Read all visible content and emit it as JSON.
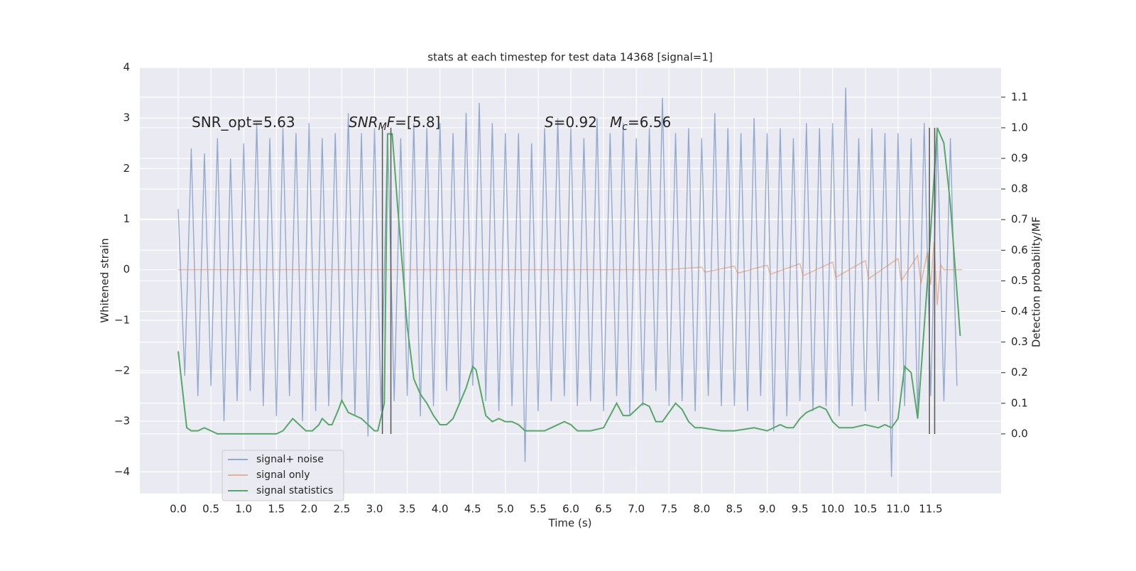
{
  "chart_data": {
    "type": "line",
    "title": "stats at each timestep for test data 14368 [signal=1]",
    "xlabel": "Time (s)",
    "ylabel": "Whitened strain",
    "y2label": "Detection probability/MF",
    "annotations": [
      [
        {
          "text": "SNR_opt=5.63"
        }
      ],
      [
        {
          "text": "SNR",
          "italic": true
        },
        {
          "text": "M",
          "italic": true,
          "sub": true
        },
        {
          "text": "F",
          "italic": true
        },
        {
          "text": "=[5.8]"
        }
      ],
      [
        {
          "text": "S",
          "italic": true
        },
        {
          "text": "=0.92"
        }
      ],
      [
        {
          "text": "M",
          "italic": true
        },
        {
          "text": "c",
          "italic": true,
          "sub": true
        },
        {
          "text": "=6.56"
        }
      ]
    ],
    "xlim": [
      -0.586,
      12.575
    ],
    "ylim": [
      -4.43,
      4.0
    ],
    "y2lim": [
      -0.195,
      1.197
    ],
    "xticks": [
      {
        "value": 0,
        "label": "0.0"
      },
      {
        "value": 0.5,
        "label": "0.5"
      },
      {
        "value": 1,
        "label": "1.0"
      },
      {
        "value": 1.5,
        "label": "1.5"
      },
      {
        "value": 2,
        "label": "2.0"
      },
      {
        "value": 2.5,
        "label": "2.5"
      },
      {
        "value": 3,
        "label": "3.0"
      },
      {
        "value": 3.5,
        "label": "3.5"
      },
      {
        "value": 4,
        "label": "4.0"
      },
      {
        "value": 4.5,
        "label": "4.5"
      },
      {
        "value": 5,
        "label": "5.0"
      },
      {
        "value": 5.5,
        "label": "5.5"
      },
      {
        "value": 6,
        "label": "6.0"
      },
      {
        "value": 6.5,
        "label": "6.5"
      },
      {
        "value": 7,
        "label": "7.0"
      },
      {
        "value": 7.5,
        "label": "7.5"
      },
      {
        "value": 8,
        "label": "8.0"
      },
      {
        "value": 8.5,
        "label": "8.5"
      },
      {
        "value": 9,
        "label": "9.0"
      },
      {
        "value": 9.5,
        "label": "9.5"
      },
      {
        "value": 10,
        "label": "10.0"
      },
      {
        "value": 10.5,
        "label": "10.5"
      },
      {
        "value": 11,
        "label": "11.0"
      },
      {
        "value": 11.5,
        "label": "11.5"
      }
    ],
    "yticks": [
      {
        "value": -4,
        "label": "−4"
      },
      {
        "value": -3,
        "label": "−3"
      },
      {
        "value": -2,
        "label": "−2"
      },
      {
        "value": -1,
        "label": "−1"
      },
      0,
      1,
      2,
      3,
      4
    ],
    "y2ticks": [
      {
        "value": 0,
        "label": "0.0"
      },
      {
        "value": 0.1,
        "label": "0.1"
      },
      {
        "value": 0.2,
        "label": "0.2"
      },
      {
        "value": 0.3,
        "label": "0.3"
      },
      {
        "value": 0.4,
        "label": "0.4"
      },
      {
        "value": 0.5,
        "label": "0.5"
      },
      {
        "value": 0.6,
        "label": "0.6"
      },
      {
        "value": 0.7,
        "label": "0.7"
      },
      {
        "value": 0.8,
        "label": "0.8"
      },
      {
        "value": 0.9,
        "label": "0.9"
      },
      {
        "value": 1,
        "label": "1.0"
      },
      {
        "value": 1.1,
        "label": "1.1"
      }
    ],
    "grid": true,
    "legend": "lower left",
    "series": [
      {
        "name": "signal+ noise",
        "color": "#4c72b0",
        "x": [
          0,
          0.1,
          0.2,
          0.3,
          0.4,
          0.5,
          0.6,
          0.7,
          0.8,
          0.9,
          1,
          1.1,
          1.2,
          1.3,
          1.4,
          1.5,
          1.6,
          1.7,
          1.8,
          1.9,
          2,
          2.1,
          2.2,
          2.3,
          2.4,
          2.5,
          2.6,
          2.7,
          2.8,
          2.9,
          3,
          3.1,
          3.2,
          3.3,
          3.4,
          3.5,
          3.6,
          3.7,
          3.8,
          3.9,
          4,
          4.1,
          4.2,
          4.3,
          4.4,
          4.5,
          4.6,
          4.7,
          4.8,
          4.9,
          5,
          5.1,
          5.2,
          5.3,
          5.4,
          5.5,
          5.6,
          5.7,
          5.8,
          5.9,
          6,
          6.1,
          6.2,
          6.3,
          6.4,
          6.5,
          6.6,
          6.7,
          6.8,
          6.9,
          7,
          7.1,
          7.2,
          7.3,
          7.4,
          7.5,
          7.6,
          7.7,
          7.8,
          7.9,
          8,
          8.1,
          8.2,
          8.3,
          8.4,
          8.5,
          8.6,
          8.7,
          8.8,
          8.9,
          9,
          9.1,
          9.2,
          9.3,
          9.4,
          9.5,
          9.6,
          9.7,
          9.8,
          9.9,
          10,
          10.1,
          10.2,
          10.3,
          10.4,
          10.5,
          10.6,
          10.7,
          10.8,
          10.9,
          11,
          11.1,
          11.2,
          11.3,
          11.4,
          11.5,
          11.6,
          11.7,
          11.8,
          11.9
        ],
        "values": [
          1.2,
          -2.1,
          2.4,
          -2.5,
          2.3,
          -2.3,
          2.6,
          -3.0,
          2.2,
          -2.6,
          2.5,
          -2.4,
          2.9,
          -2.7,
          2.6,
          -2.9,
          2.8,
          -2.5,
          2.7,
          -3.0,
          2.9,
          -2.8,
          2.6,
          -2.7,
          2.7,
          -2.6,
          3.1,
          -2.9,
          2.7,
          -3.3,
          2.8,
          -2.8,
          2.7,
          -2.6,
          2.6,
          -2.5,
          2.9,
          -2.9,
          2.8,
          -2.7,
          2.9,
          -2.4,
          2.7,
          -2.6,
          3.1,
          -2.3,
          3.3,
          -2.6,
          2.9,
          -2.8,
          2.7,
          -2.7,
          2.7,
          -3.8,
          2.5,
          -2.8,
          2.8,
          -2.6,
          3.0,
          -2.5,
          2.8,
          -2.7,
          2.6,
          -2.6,
          3.0,
          -2.8,
          2.7,
          -2.5,
          2.9,
          -2.9,
          2.6,
          -2.7,
          2.8,
          -2.4,
          3.4,
          -2.7,
          2.7,
          -2.6,
          2.8,
          -2.8,
          2.6,
          -2.5,
          3.1,
          -2.7,
          2.8,
          -2.7,
          2.7,
          -2.8,
          3.0,
          -2.5,
          2.7,
          -3.2,
          2.8,
          -2.9,
          2.6,
          -2.6,
          2.9,
          -2.8,
          2.8,
          -2.7,
          2.9,
          -2.9,
          3.6,
          -2.7,
          2.6,
          -2.8,
          2.8,
          -2.6,
          2.7,
          -4.1,
          2.7,
          -2.7,
          2.6,
          -2.9,
          2.9,
          -2.5,
          2.7,
          -2.6,
          2.6,
          -2.3
        ]
      },
      {
        "name": "signal only",
        "color": "#dd8452",
        "x": [
          0,
          7.5,
          8.0,
          8.05,
          8.5,
          8.55,
          9.0,
          9.05,
          9.5,
          9.55,
          10.0,
          10.05,
          10.5,
          10.55,
          11.0,
          11.05,
          11.3,
          11.35,
          11.45,
          11.5,
          11.55,
          11.6,
          11.65,
          11.7,
          11.98
        ],
        "values": [
          0,
          0,
          0.05,
          -0.05,
          0.07,
          -0.07,
          0.09,
          -0.09,
          0.12,
          -0.12,
          0.15,
          -0.15,
          0.18,
          -0.18,
          0.22,
          -0.22,
          0.28,
          -0.28,
          0.35,
          -0.3,
          0.55,
          -0.7,
          0.1,
          0,
          0
        ]
      },
      {
        "name": "signal statistics",
        "color": "#55a868",
        "axis": "y2",
        "x": [
          0,
          0.13,
          0.2,
          0.3,
          0.4,
          0.5,
          0.6,
          1.0,
          1.5,
          1.6,
          1.75,
          1.85,
          1.95,
          2.05,
          2.15,
          2.2,
          2.3,
          2.35,
          2.45,
          2.5,
          2.6,
          2.8,
          2.9,
          3.0,
          3.05,
          3.15,
          3.2,
          3.27,
          3.35,
          3.5,
          3.6,
          3.7,
          3.8,
          3.9,
          4.0,
          4.1,
          4.2,
          4.3,
          4.4,
          4.5,
          4.55,
          4.6,
          4.7,
          4.8,
          4.9,
          5.0,
          5.1,
          5.2,
          5.3,
          5.4,
          5.6,
          5.7,
          5.9,
          6.0,
          6.1,
          6.3,
          6.5,
          6.6,
          6.7,
          6.8,
          6.9,
          7.1,
          7.2,
          7.3,
          7.4,
          7.6,
          7.7,
          7.8,
          7.9,
          8.0,
          8.3,
          8.5,
          8.8,
          9.0,
          9.2,
          9.3,
          9.4,
          9.5,
          9.6,
          9.8,
          9.9,
          10.0,
          10.1,
          10.3,
          10.5,
          10.7,
          10.8,
          10.9,
          11.0,
          11.1,
          11.2,
          11.3,
          11.45,
          11.6,
          11.7,
          11.8,
          11.95
        ],
        "values": [
          0.27,
          0.02,
          0.01,
          0.01,
          0.02,
          0.01,
          0.0,
          0.0,
          0.0,
          0.01,
          0.05,
          0.03,
          0.01,
          0.01,
          0.03,
          0.05,
          0.03,
          0.03,
          0.08,
          0.11,
          0.07,
          0.05,
          0.03,
          0.01,
          0.01,
          0.1,
          0.98,
          0.98,
          0.75,
          0.35,
          0.18,
          0.13,
          0.1,
          0.06,
          0.03,
          0.03,
          0.05,
          0.1,
          0.15,
          0.22,
          0.21,
          0.16,
          0.06,
          0.04,
          0.05,
          0.04,
          0.04,
          0.03,
          0.01,
          0.01,
          0.01,
          0.02,
          0.04,
          0.03,
          0.01,
          0.01,
          0.02,
          0.06,
          0.1,
          0.06,
          0.06,
          0.1,
          0.09,
          0.04,
          0.04,
          0.1,
          0.08,
          0.04,
          0.02,
          0.02,
          0.01,
          0.01,
          0.02,
          0.01,
          0.03,
          0.02,
          0.02,
          0.05,
          0.07,
          0.09,
          0.08,
          0.04,
          0.02,
          0.02,
          0.03,
          0.02,
          0.03,
          0.02,
          0.05,
          0.22,
          0.2,
          0.05,
          0.5,
          1.0,
          0.95,
          0.75,
          0.32
        ]
      }
    ],
    "vlines": [
      3.12,
      3.25,
      11.48,
      11.56
    ],
    "vline_range": [
      0,
      1.0
    ]
  }
}
